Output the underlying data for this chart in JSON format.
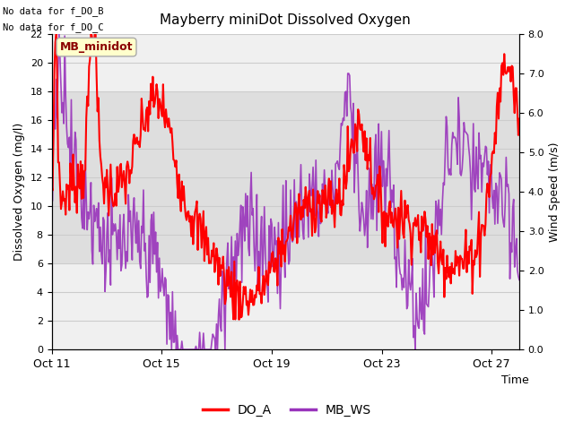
{
  "title": "Mayberry miniDot Dissolved Oxygen",
  "xlabel": "Time",
  "ylabel_left": "Dissolved Oxygen (mg/l)",
  "ylabel_right": "Wind Speed (m/s)",
  "annotations": [
    "No data for f_DO_B",
    "No data for f_DO_C"
  ],
  "legend_label_box": "MB_minidot",
  "xlim_start": 0,
  "xlim_end": 17,
  "ylim_left": [
    0,
    22
  ],
  "ylim_right": [
    0.0,
    8.0
  ],
  "yticks_left": [
    0,
    2,
    4,
    6,
    8,
    10,
    12,
    14,
    16,
    18,
    20,
    22
  ],
  "yticks_right": [
    0.0,
    1.0,
    2.0,
    3.0,
    4.0,
    5.0,
    6.0,
    7.0,
    8.0
  ],
  "xtick_labels": [
    "Oct 11",
    "Oct 15",
    "Oct 19",
    "Oct 23",
    "Oct 27"
  ],
  "xtick_positions": [
    0,
    4,
    8,
    12,
    16
  ],
  "color_DO": "#ff0000",
  "color_WS": "#9933bb",
  "color_bg_band": "#dcdcdc",
  "bg_band_ymin": 6.0,
  "bg_band_ymax": 18.0,
  "legend_entries": [
    "DO_A",
    "MB_WS"
  ],
  "grid_color": "#cccccc",
  "box_facecolor": "#ffffcc",
  "box_edgecolor": "#aaaaaa",
  "plot_bg": "#f0f0f0",
  "fig_bg": "#ffffff",
  "linewidth_DO": 1.5,
  "linewidth_WS": 1.2
}
